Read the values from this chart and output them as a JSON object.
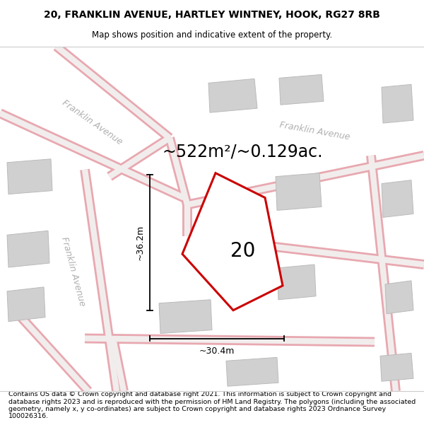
{
  "title_line1": "20, FRANKLIN AVENUE, HARTLEY WINTNEY, HOOK, RG27 8RB",
  "title_line2": "Map shows position and indicative extent of the property.",
  "footer_text": "Contains OS data © Crown copyright and database right 2021. This information is subject to Crown copyright and database rights 2023 and is reproduced with the permission of HM Land Registry. The polygons (including the associated geometry, namely x, y co-ordinates) are subject to Crown copyright and database rights 2023 Ordnance Survey 100026316.",
  "area_label": "~522m²/~0.129ac.",
  "house_number": "20",
  "dim_width": "~30.4m",
  "dim_height": "~36.2m",
  "map_bg": "#eeecec",
  "road_color": "#e8a8b0",
  "road_fill": "#f2eded",
  "building_color": "#d0d0d0",
  "building_edge": "#bbbbbb",
  "plot_color": "#cc0000",
  "plot_fill": "#ffffff",
  "street_label_color": "#b0b0b0",
  "dim_line_color": "#111111",
  "title_fontsize": 10,
  "subtitle_fontsize": 8.5,
  "area_fontsize": 17,
  "number_fontsize": 20,
  "dim_fontsize": 9,
  "street_fontsize": 9,
  "footer_fontsize": 6.8,
  "road_lw": 8,
  "road_inner_lw": 5
}
